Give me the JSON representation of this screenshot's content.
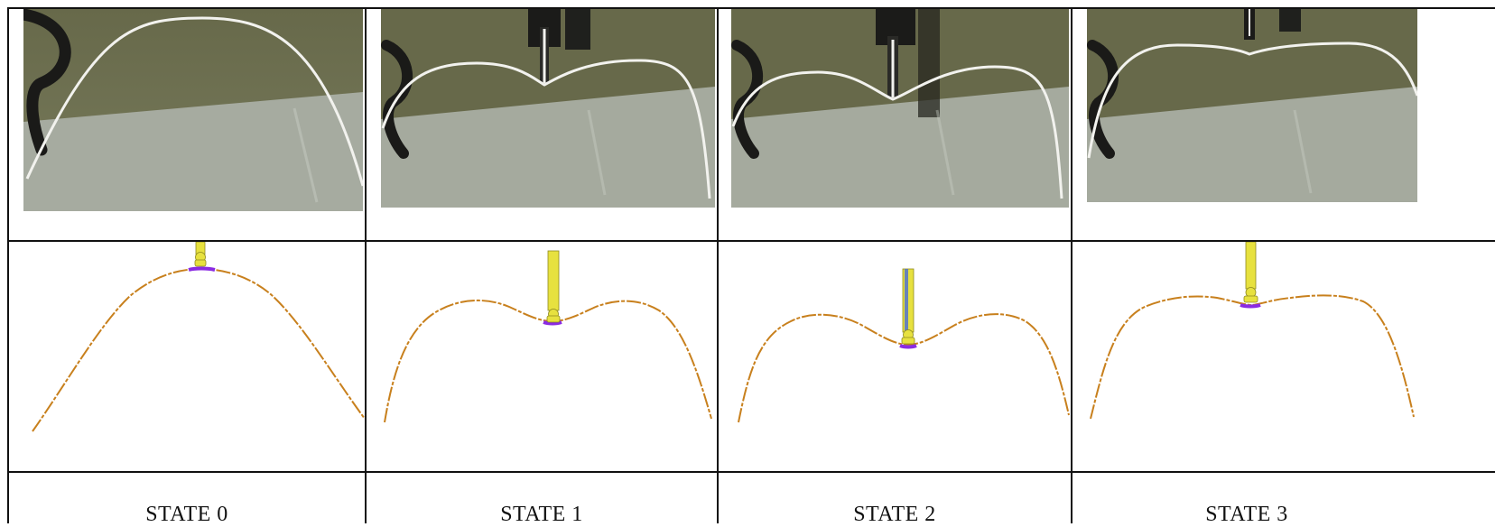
{
  "states": [
    {
      "label": "STATE 0"
    },
    {
      "label": "STATE 1"
    },
    {
      "label": "STATE 2"
    },
    {
      "label": "STATE 3"
    }
  ],
  "colors": {
    "border": "#111111",
    "photo_background": "#6b6d4d",
    "photo_floor": "#a6aba0",
    "wire": "#f2f2ee",
    "probe_dark": "#1b1b19",
    "tool_yellow": "#e7e13f",
    "curve_orange": "#c8801d",
    "contact_purple": "#8a2be2"
  }
}
